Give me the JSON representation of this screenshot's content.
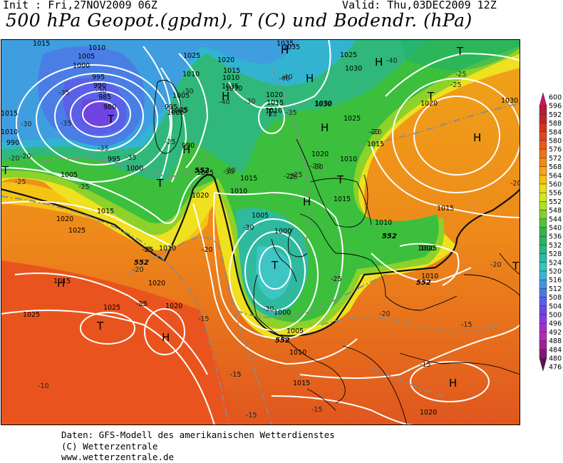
{
  "header": {
    "init": "Init : Fri,27NOV2009 06Z",
    "valid": "Valid: Thu,03DEC2009 12Z",
    "title": "500 hPa Geopot.(gpdm), T (C) und Bodendr. (hPa)"
  },
  "footer": {
    "line1": "Daten: GFS-Modell des amerikanischen Wetterdienstes",
    "line2": "(C) Wetterzentrale",
    "line3": "www.wetterzentrale.de"
  },
  "legend": {
    "levels": [
      "600",
      "596",
      "592",
      "588",
      "584",
      "580",
      "576",
      "572",
      "568",
      "564",
      "560",
      "556",
      "552",
      "548",
      "544",
      "540",
      "536",
      "532",
      "528",
      "524",
      "520",
      "516",
      "512",
      "508",
      "504",
      "500",
      "496",
      "492",
      "488",
      "484",
      "480",
      "476"
    ],
    "colors": [
      "#cc1166",
      "#b81a3a",
      "#c42222",
      "#d23322",
      "#e0441e",
      "#e85a1a",
      "#ef7316",
      "#f58a12",
      "#f8a410",
      "#f7c010",
      "#eedc1a",
      "#d6e61c",
      "#b0e020",
      "#80d22a",
      "#4ec23a",
      "#2eb848",
      "#28b463",
      "#28b682",
      "#28bca4",
      "#30c6c4",
      "#3ab4d6",
      "#4296e0",
      "#4a78e6",
      "#5a5ee8",
      "#6e48e6",
      "#8a3adc",
      "#a42ccc",
      "#bc24b8",
      "#a41e96",
      "#7e1a74",
      "#5a1450"
    ]
  },
  "map": {
    "pressure_centers": [
      {
        "label": "H",
        "kind": "high"
      },
      {
        "label": "H",
        "kind": "high"
      },
      {
        "label": "H",
        "kind": "high"
      },
      {
        "label": "H",
        "kind": "high"
      },
      {
        "label": "H",
        "kind": "high"
      },
      {
        "label": "H",
        "kind": "high"
      },
      {
        "label": "H",
        "kind": "high"
      },
      {
        "label": "H",
        "kind": "high"
      },
      {
        "label": "H",
        "kind": "high"
      },
      {
        "label": "H",
        "kind": "high"
      },
      {
        "label": "H",
        "kind": "high"
      },
      {
        "label": "H",
        "kind": "high"
      },
      {
        "label": "H",
        "kind": "high"
      },
      {
        "label": "H",
        "kind": "high"
      },
      {
        "label": "T",
        "kind": "low"
      },
      {
        "label": "T",
        "kind": "low"
      },
      {
        "label": "T",
        "kind": "low"
      },
      {
        "label": "T",
        "kind": "low"
      },
      {
        "label": "T",
        "kind": "low"
      },
      {
        "label": "T",
        "kind": "low"
      },
      {
        "label": "T",
        "kind": "low"
      },
      {
        "label": "T",
        "kind": "low"
      },
      {
        "label": "T",
        "kind": "low"
      },
      {
        "label": "T",
        "kind": "low"
      }
    ],
    "isobar_labels": [
      "1015",
      "1010",
      "1005",
      "1000",
      "995",
      "990",
      "985",
      "980",
      "1015",
      "1010",
      "1005",
      "1000",
      "995",
      "990",
      "1015",
      "1020",
      "1025",
      "1030",
      "1035",
      "1035",
      "1030",
      "1025",
      "1030",
      "1020",
      "1015",
      "1010",
      "1005",
      "1025",
      "1020",
      "1010",
      "1015",
      "1010",
      "1005",
      "1000",
      "995",
      "990",
      "1020",
      "1025",
      "1010",
      "1015",
      "1020",
      "1025",
      "1000",
      "1005",
      "1010",
      "1015",
      "1020",
      "1030",
      "1015",
      "1010",
      "1025",
      "1000",
      "1005",
      "1010",
      "1015",
      "1020",
      "1025",
      "1020",
      "1015",
      "1010",
      "1000",
      "1025",
      "1035",
      "1020",
      "1015",
      "1010",
      "1030"
    ],
    "temperature_labels": [
      "-35",
      "-30",
      "-35",
      "-30",
      "-20",
      "-25",
      "-20",
      "-15",
      "-15",
      "-10",
      "-15",
      "-15",
      "-15",
      "-20",
      "-20",
      "-25",
      "-30",
      "-25",
      "-30",
      "-35",
      "-40",
      "-40",
      "-40",
      "-30",
      "-25",
      "-30",
      "-35",
      "-35",
      "-25",
      "-30",
      "-25",
      "-20",
      "-25",
      "-20",
      "-25",
      "-20",
      "-15",
      "-15",
      "-20",
      "-25",
      "-30",
      "-30",
      "-35",
      "-40",
      "-25",
      "-20",
      "-25",
      "-20",
      "-30",
      "-25",
      "-15",
      "-15",
      "-20",
      "-25"
    ],
    "geopotential_labels": [
      "552",
      "552",
      "552",
      "552",
      "552"
    ]
  }
}
